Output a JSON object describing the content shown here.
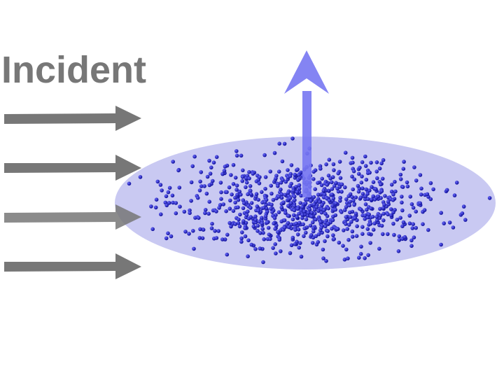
{
  "label": {
    "text": "Incident"
  }
}
